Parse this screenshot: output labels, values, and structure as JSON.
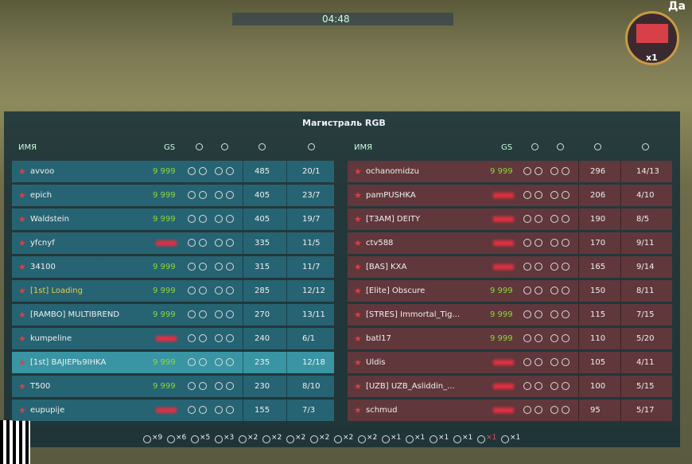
{
  "title": "Магистраль RGB",
  "timer": "04:48",
  "multiplier": "x1",
  "corner_text": "Да",
  "columns": {
    "name": "ИМЯ",
    "gs": "GS"
  },
  "teams": [
    {
      "side": "left",
      "rows": [
        {
          "name": "avvoo",
          "gs": "9 999",
          "score": 485,
          "kd": "20/1"
        },
        {
          "name": "epich",
          "gs": "9 999",
          "score": 405,
          "kd": "23/7"
        },
        {
          "name": "Waldstein",
          "gs": "9 999",
          "score": 405,
          "kd": "19/7"
        },
        {
          "name": "yfcnyf",
          "gs": null,
          "score": 335,
          "kd": "11/5"
        },
        {
          "name": "34100",
          "gs": "9 999",
          "score": 315,
          "kd": "11/7"
        },
        {
          "name": "[1st] Loading",
          "gs": "9 999",
          "score": 285,
          "kd": "12/12",
          "name_color": "#e8d040"
        },
        {
          "name": "[RAMBO] MULTIBREND",
          "gs": "9 999",
          "score": 270,
          "kd": "13/11"
        },
        {
          "name": "kumpeline",
          "gs": null,
          "score": 240,
          "kd": "6/1"
        },
        {
          "name": "[1st] BAJIEPЬ9IHKA",
          "gs": "9 999",
          "score": 235,
          "kd": "12/18",
          "self": true
        },
        {
          "name": "T500",
          "gs": "9 999",
          "score": 230,
          "kd": "8/10"
        },
        {
          "name": "eupupije",
          "gs": null,
          "score": 155,
          "kd": "7/3"
        }
      ]
    },
    {
      "side": "right",
      "rows": [
        {
          "name": "ochanomidzu",
          "gs": "9 999",
          "score": 296,
          "kd": "14/13"
        },
        {
          "name": "pamPUSHKA",
          "gs": null,
          "score": 206,
          "kd": "4/10"
        },
        {
          "name": "[T3AM] DEITY",
          "gs": null,
          "score": 190,
          "kd": "8/5"
        },
        {
          "name": "ctv588",
          "gs": null,
          "score": 170,
          "kd": "9/11"
        },
        {
          "name": "[BAS] KXA",
          "gs": null,
          "score": 165,
          "kd": "9/14"
        },
        {
          "name": "[Elite] Obscure",
          "gs": "9 999",
          "score": 150,
          "kd": "8/11"
        },
        {
          "name": "[STRES] Immortal_Tig...",
          "gs": "9 999",
          "score": 115,
          "kd": "7/15"
        },
        {
          "name": "batl17",
          "gs": "9 999",
          "score": 110,
          "kd": "5/20"
        },
        {
          "name": "Uldis",
          "gs": null,
          "score": 105,
          "kd": "4/11"
        },
        {
          "name": "[UZB] UZB_Asliddin_...",
          "gs": null,
          "score": 100,
          "kd": "5/15"
        },
        {
          "name": "schmud",
          "gs": null,
          "score": 95,
          "kd": "5/17"
        }
      ]
    }
  ],
  "awards": [
    "×9",
    "×6",
    "×5",
    "×3",
    "×2",
    "×2",
    "×2",
    "×2",
    "×2",
    "×2",
    "×1",
    "×1",
    "×1",
    "×1",
    "×1",
    "×1"
  ]
}
